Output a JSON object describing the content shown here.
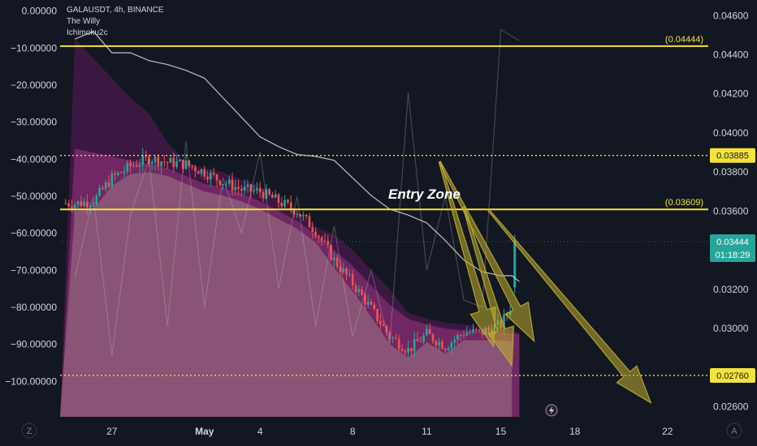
{
  "header": {
    "symbol": "GALAUSDT, 4h, BINANCE",
    "indicator1": "The Willy",
    "indicator2": "Ichimoku2c"
  },
  "colors": {
    "background": "#131722",
    "cloud_outer": "#4a1a4c",
    "cloud_inner": "#7a2a6a",
    "lower_fill": "#8c5a78",
    "level_line": "#f5e33b",
    "up_candle": "#26a69a",
    "down_candle": "#ef5350",
    "arrow": "#bfae2e"
  },
  "chart_data": {
    "type": "line",
    "left_axis": {
      "ticks": [
        "0.00000",
        "−10.00000",
        "−20.00000",
        "−30.00000",
        "−40.00000",
        "−50.00000",
        "−60.00000",
        "−70.00000",
        "−80.00000",
        "−90.00000",
        "−100.00000"
      ],
      "values": [
        0,
        -10,
        -20,
        -30,
        -40,
        -50,
        -60,
        -70,
        -80,
        -90,
        -100
      ],
      "ylim": [
        -110,
        3
      ]
    },
    "right_axis": {
      "ticks": [
        "0.04600",
        "0.04400",
        "0.04200",
        "0.04000",
        "0.03800",
        "0.03600",
        "0.03200",
        "0.03000",
        "0.02600"
      ],
      "values": [
        0.046,
        0.044,
        0.042,
        0.04,
        0.038,
        0.036,
        0.032,
        0.03,
        0.026
      ],
      "ylim": [
        0.0254,
        0.0468
      ]
    },
    "x_axis": {
      "ticks": [
        "27",
        "May",
        "4",
        "8",
        "11",
        "15",
        "18",
        "22"
      ],
      "positions": [
        1,
        6,
        9,
        14,
        18,
        22,
        26,
        31
      ]
    },
    "levels": [
      {
        "value": 0.04444,
        "label": "(0.04444)",
        "style": "solid"
      },
      {
        "value": 0.03609,
        "label": "(0.03609)",
        "style": "solid"
      },
      {
        "value": 0.03885,
        "label": "0.03885",
        "style": "dotted"
      },
      {
        "value": 0.0276,
        "label": "0.02760",
        "style": "dotted"
      }
    ],
    "current_price": {
      "value": 0.03444,
      "label": "0.03444",
      "countdown": "01:18:29"
    },
    "annotation": "Entry Zone",
    "corner_labels": {
      "left": "Z",
      "right": "A"
    },
    "price_path": {
      "x": [
        -1,
        0,
        1,
        2,
        3,
        4,
        5,
        6,
        7,
        8,
        9,
        10,
        11,
        12,
        13,
        14,
        15,
        16,
        17,
        18,
        19,
        20,
        21,
        22,
        22.6,
        23
      ],
      "y": [
        0.0364,
        0.0365,
        0.0377,
        0.0383,
        0.0387,
        0.0385,
        0.0384,
        0.038,
        0.0375,
        0.0371,
        0.037,
        0.0365,
        0.036,
        0.035,
        0.0335,
        0.0323,
        0.031,
        0.0296,
        0.0289,
        0.0297,
        0.0291,
        0.0298,
        0.0298,
        0.0302,
        0.0312,
        0.03444
      ]
    },
    "cloud_top": {
      "x": [
        -1,
        0,
        1,
        2,
        3,
        4,
        5,
        6,
        7,
        8,
        9,
        10,
        11,
        12,
        13,
        14,
        15,
        16,
        17,
        18,
        19,
        20,
        21,
        22,
        23
      ],
      "y": [
        0.0448,
        0.0438,
        0.0428,
        0.0418,
        0.041,
        0.0395,
        0.0385,
        0.0382,
        0.038,
        0.0376,
        0.0373,
        0.0365,
        0.036,
        0.0352,
        0.0348,
        0.034,
        0.033,
        0.032,
        0.0308,
        0.0305,
        0.0303,
        0.0302,
        0.0301,
        0.03,
        0.0298
      ]
    },
    "cloud_inner_top": {
      "x": [
        -1,
        0,
        1,
        2,
        3,
        4,
        5,
        6,
        7,
        8,
        9,
        10,
        11,
        12,
        13,
        14,
        15,
        16,
        17,
        18,
        19,
        20,
        21,
        22,
        23
      ],
      "y": [
        0.0392,
        0.039,
        0.0388,
        0.0386,
        0.0384,
        0.0382,
        0.0378,
        0.0374,
        0.0372,
        0.0369,
        0.0365,
        0.036,
        0.0355,
        0.0348,
        0.034,
        0.0332,
        0.0322,
        0.0312,
        0.0305,
        0.0302,
        0.03,
        0.0299,
        0.0299,
        0.0298,
        0.0297
      ]
    },
    "baseline_line": {
      "x": [
        -1,
        0,
        1,
        2,
        3,
        4,
        5,
        6,
        7,
        8,
        9,
        10,
        11,
        12,
        13,
        14,
        15,
        16,
        17,
        18,
        19,
        20,
        21,
        22,
        22.6,
        23
      ],
      "y": [
        0.0448,
        0.0452,
        0.0441,
        0.0441,
        0.0437,
        0.0435,
        0.0432,
        0.0428,
        0.0418,
        0.0408,
        0.0398,
        0.0393,
        0.0389,
        0.0388,
        0.0386,
        0.0377,
        0.0368,
        0.0361,
        0.0358,
        0.0354,
        0.0345,
        0.0335,
        0.0329,
        0.0327,
        0.0327,
        0.0324
      ]
    },
    "willy": {
      "x": [
        -1,
        0,
        1,
        2,
        3,
        4,
        5,
        6,
        7,
        8,
        9,
        10,
        11,
        12,
        13,
        14,
        15,
        16,
        17,
        18,
        19,
        20,
        21,
        22,
        23
      ],
      "y": [
        -72,
        -50,
        -93,
        -55,
        -40,
        -85,
        -35,
        -80,
        -45,
        -60,
        -38,
        -75,
        -50,
        -85,
        -58,
        -88,
        -70,
        -90,
        -22,
        -70,
        -50,
        -78,
        -80,
        -5,
        -8
      ]
    },
    "arrows": [
      {
        "from": [
          18.7,
          0.03852
        ],
        "to": [
          21.6,
          0.02908
        ]
      },
      {
        "from": [
          18.7,
          0.03852
        ],
        "to": [
          23.8,
          0.02935
        ]
      },
      {
        "from": [
          20.0,
          0.0362
        ],
        "to": [
          22.6,
          0.0281
        ]
      },
      {
        "from": [
          21.3,
          0.0361
        ],
        "to": [
          30.1,
          0.0262
        ]
      }
    ],
    "xlim": [
      -1.8,
      33.2
    ]
  }
}
